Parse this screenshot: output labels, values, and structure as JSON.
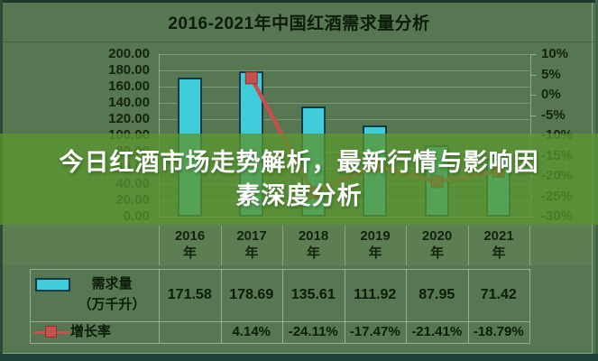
{
  "overlay": {
    "text": "今日红酒市场走势解析，最新行情与影响因素深度分析",
    "lines": [
      "今日红酒市场走势解析，最新行情与影响因",
      "素深度分析"
    ],
    "bg_color": "rgba(88,150,48,0.78)",
    "text_color": "#ffffff"
  },
  "chart_data": {
    "type": "bar",
    "title": "2016-2021年中国红酒需求量分析",
    "categories": [
      "2016",
      "2017",
      "2018",
      "2019",
      "2020",
      "2021"
    ],
    "category_suffix": "年",
    "series": [
      {
        "name": "需求量",
        "name_unit": "（万千升）",
        "type": "bar",
        "axis": "left",
        "color": "#3fced9",
        "values": [
          171.58,
          178.69,
          135.61,
          111.92,
          87.95,
          71.42
        ],
        "display_values": [
          "171.58",
          "178.69",
          "135.61",
          "111.92",
          "87.95",
          "71.42"
        ]
      },
      {
        "name": "增长率",
        "type": "line",
        "axis": "right",
        "color": "#c6504b",
        "marker_stroke": "#8e3331",
        "values": [
          null,
          4.14,
          -24.11,
          -17.47,
          -21.41,
          -18.79
        ],
        "display_values": [
          "",
          "4.14%",
          "-24.11%",
          "-17.47%",
          "-21.41%",
          "-18.79%"
        ]
      }
    ],
    "left_axis": {
      "min": 0,
      "max": 200,
      "step": 20,
      "labels": [
        "200.00",
        "180.00",
        "160.00",
        "140.00",
        "120.00",
        "100.00",
        "80.00",
        "60.00",
        "40.00",
        "20.00",
        "0.00"
      ]
    },
    "right_axis": {
      "min": -30,
      "max": 10,
      "step": 5,
      "labels": [
        "10%",
        "5%",
        "0%",
        "-5%",
        "-10%",
        "-15%",
        "-20%",
        "-25%",
        "-30%"
      ]
    },
    "grid": true,
    "legend_position": "table-left"
  }
}
